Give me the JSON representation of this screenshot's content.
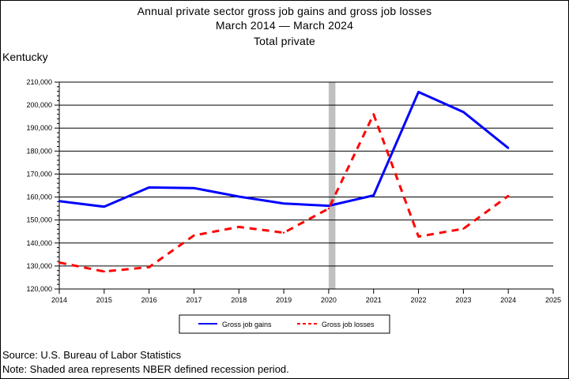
{
  "chart_data": {
    "type": "line",
    "title": [
      "Annual private sector gross job gains and gross job losses",
      "March 2014 — March 2024",
      "Total private"
    ],
    "region_label": "Kentucky",
    "x": [
      2014,
      2015,
      2016,
      2017,
      2018,
      2019,
      2020,
      2021,
      2022,
      2023,
      2024
    ],
    "xlim": [
      2014,
      2025
    ],
    "x_ticks": [
      "2014",
      "2015",
      "2016",
      "2017",
      "2018",
      "2019",
      "2020",
      "2021",
      "2022",
      "2023",
      "2024",
      "2025"
    ],
    "ylim": [
      120000,
      210000
    ],
    "y_ticks": [
      "120,000",
      "130,000",
      "140,000",
      "150,000",
      "160,000",
      "170,000",
      "180,000",
      "190,000",
      "200,000",
      "210,000"
    ],
    "grid": "horizontal",
    "series": [
      {
        "name": "Gross job gains",
        "color": "#0000ff",
        "style": "solid",
        "values": [
          158200,
          155800,
          164200,
          163900,
          160200,
          157200,
          156200,
          160700,
          205700,
          197000,
          181300
        ]
      },
      {
        "name": "Gross job losses",
        "color": "#ff0000",
        "style": "dashed",
        "values": [
          131500,
          127600,
          129500,
          143300,
          147000,
          144500,
          155000,
          196000,
          142800,
          146200,
          160500
        ]
      }
    ],
    "recession": {
      "start": 2020,
      "end": 2020.15,
      "color": "#c0c0c0"
    },
    "legend_position": "bottom"
  },
  "footer": {
    "source": "Source: U.S. Bureau of Labor Statistics",
    "note": "Note: Shaded area represents NBER defined recession period."
  }
}
